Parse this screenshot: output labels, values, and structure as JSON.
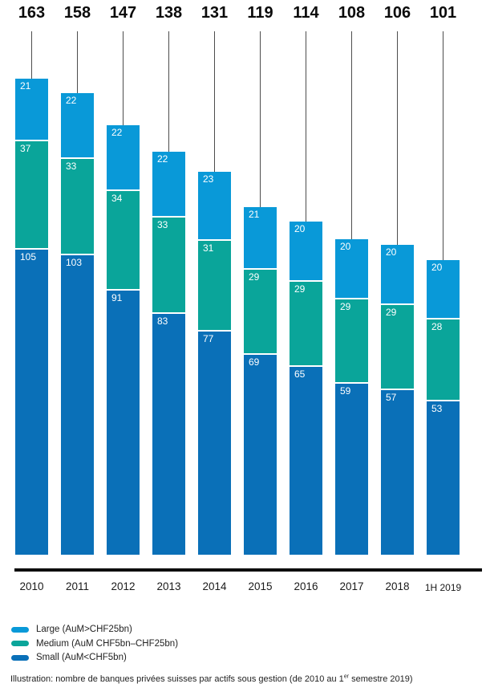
{
  "chart_data": {
    "type": "bar",
    "stacked": true,
    "orientation": "vertical",
    "title": "",
    "xlabel": "",
    "ylabel": "",
    "grid": false,
    "legend_position": "bottom-left",
    "categories": [
      "2010",
      "2011",
      "2012",
      "2013",
      "2014",
      "2015",
      "2016",
      "2017",
      "2018",
      "1H 2019"
    ],
    "totals": [
      163,
      158,
      147,
      138,
      131,
      119,
      114,
      108,
      106,
      101
    ],
    "series": [
      {
        "key": "large",
        "name": "Large (AuM>CHF25bn)",
        "color": "#0999D8",
        "values": [
          21,
          22,
          22,
          22,
          23,
          21,
          20,
          20,
          20,
          20
        ]
      },
      {
        "key": "medium",
        "name": "Medium (AuM CHF5bn–CHF25bn)",
        "color": "#0AA59A",
        "values": [
          37,
          33,
          34,
          33,
          31,
          29,
          29,
          29,
          29,
          28
        ]
      },
      {
        "key": "small",
        "name": "Small (AuM<CHF5bn)",
        "color": "#0A70B8",
        "values": [
          105,
          103,
          91,
          83,
          77,
          69,
          65,
          59,
          57,
          53
        ]
      }
    ],
    "stack_order_top_to_bottom": [
      "large",
      "medium",
      "small"
    ],
    "connector_line_color": "#4d4d4d",
    "baseline_color": "#0d0d0d"
  },
  "caption": {
    "pre": "Illustration: nombre de banques privées suisses par actifs sous gestion (de 2010 au 1",
    "sup": "er",
    "post": " semestre 2019)"
  }
}
